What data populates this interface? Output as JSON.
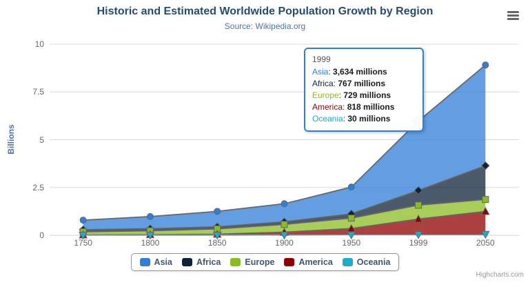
{
  "header": {
    "title": "Historic and Estimated Worldwide Population Growth by Region",
    "subtitle": "Source: Wikipedia.org"
  },
  "chart_data": {
    "type": "area",
    "stacking": "normal",
    "title": "Historic and Estimated Worldwide Population Growth by Region",
    "subtitle": "Source: Wikipedia.org",
    "categories": [
      "1750",
      "1800",
      "1850",
      "1900",
      "1950",
      "1999",
      "2050"
    ],
    "series": [
      {
        "name": "Asia",
        "color": "#2f7ed8",
        "marker": "circle",
        "values": [
          502,
          635,
          809,
          947,
          1402,
          3634,
          5268
        ]
      },
      {
        "name": "Africa",
        "color": "#0d233a",
        "marker": "diamond",
        "values": [
          106,
          107,
          111,
          133,
          221,
          767,
          1766
        ]
      },
      {
        "name": "Europe",
        "color": "#8bbc21",
        "marker": "square",
        "values": [
          163,
          203,
          276,
          408,
          547,
          729,
          628
        ]
      },
      {
        "name": "America",
        "color": "#910000",
        "marker": "triangle",
        "values": [
          18,
          31,
          54,
          156,
          339,
          818,
          1201
        ]
      },
      {
        "name": "Oceania",
        "color": "#1aadce",
        "marker": "triangle-down",
        "values": [
          2,
          2,
          2,
          6,
          13,
          30,
          46
        ]
      }
    ],
    "units": "millions",
    "xlabel": "",
    "ylabel": "Billions",
    "ylim": [
      0,
      10
    ],
    "yticks": [
      0,
      2.5,
      5,
      7.5,
      10
    ],
    "grid": true,
    "legend_position": "bottom",
    "hover": {
      "series": "Asia",
      "category_index": 5
    },
    "style": {
      "fill_opacity": 0.75,
      "line_color": "#666666",
      "marker_stroke": "#666666",
      "grid_color": "#d8d8d8",
      "axis_line_color": "#c0d0e0",
      "label_color": "#666666"
    }
  },
  "tooltip": {
    "header": "1999",
    "rows": [
      {
        "name": "Asia",
        "value": "3,634 millions"
      },
      {
        "name": "Africa",
        "value": "767 millions"
      },
      {
        "name": "Europe",
        "value": "729 millions"
      },
      {
        "name": "America",
        "value": "818 millions"
      },
      {
        "name": "Oceania",
        "value": "30 millions"
      }
    ]
  },
  "credits": "Highcharts.com"
}
